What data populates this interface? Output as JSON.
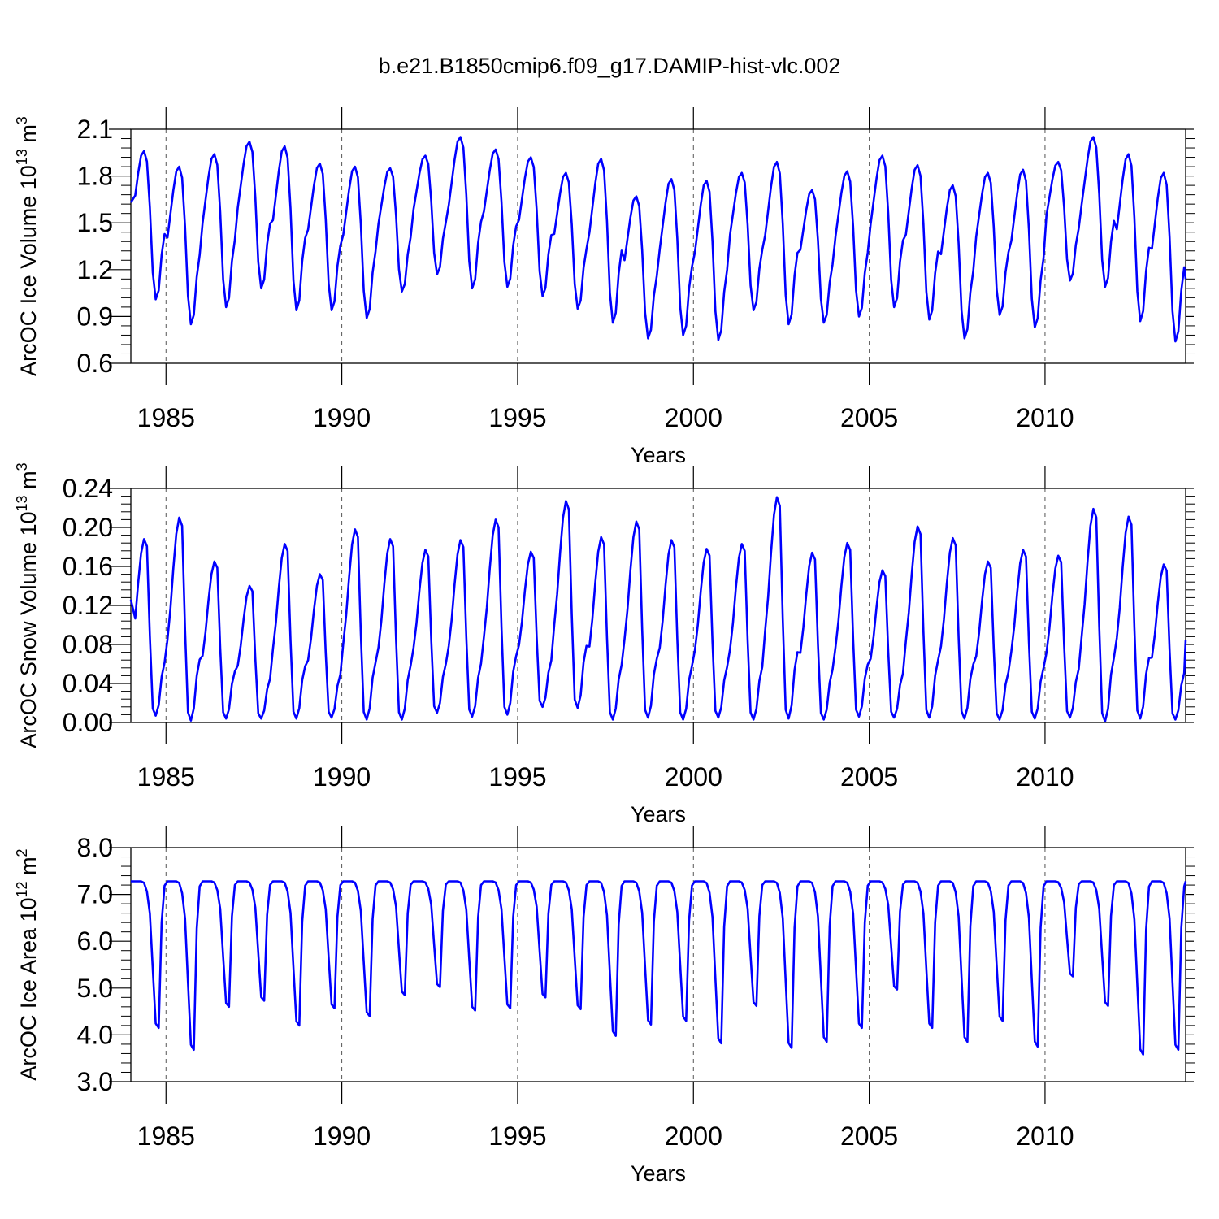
{
  "title": "b.e21.B1850cmip6.f09_g17.DAMIP-hist-vlc.002",
  "line_color": "#0000ff",
  "chart_data": [
    {
      "type": "line",
      "name": "ice-volume",
      "ylabel": "ArcOC Ice Volume 10^13 m^3",
      "ylabel_main": "ArcOC Ice Volume 10",
      "ylabel_exp": "13",
      "ylabel_unit": "m",
      "ylabel_unit_exp": "3",
      "xlabel": "Years",
      "xlim": [
        1984.0,
        2014.0
      ],
      "ylim": [
        0.6,
        2.1
      ],
      "x_ticks": [
        "1985",
        "1990",
        "1995",
        "2000",
        "2005",
        "2010"
      ],
      "y_ticks": [
        "0.6",
        "0.9",
        "1.2",
        "1.5",
        "1.8",
        "2.1"
      ],
      "series": [
        {
          "name": "ArcOC Ice Volume",
          "annual_max": [
            1.96,
            1.86,
            1.94,
            2.02,
            1.99,
            1.88,
            1.86,
            1.85,
            1.93,
            2.05,
            1.97,
            1.92,
            1.82,
            1.91,
            1.67,
            1.78,
            1.77,
            1.82,
            1.89,
            1.71,
            1.83,
            1.93,
            1.87,
            1.74,
            1.82,
            1.84,
            1.89,
            2.05,
            1.94,
            1.82
          ],
          "annual_min": [
            1.01,
            0.85,
            0.96,
            1.08,
            0.94,
            0.94,
            0.89,
            1.06,
            1.17,
            1.08,
            1.09,
            1.03,
            0.95,
            0.86,
            0.76,
            0.78,
            0.75,
            0.94,
            0.85,
            0.86,
            0.9,
            0.96,
            0.88,
            0.76,
            0.91,
            0.83,
            1.13,
            1.09,
            0.87,
            0.74
          ],
          "start_value": 1.63,
          "end_value": 1.14
        }
      ]
    },
    {
      "type": "line",
      "name": "snow-volume",
      "ylabel": "ArcOC Snow Volume 10^13 m^3",
      "ylabel_main": "ArcOC Snow Volume 10",
      "ylabel_exp": "13",
      "ylabel_unit": "m",
      "ylabel_unit_exp": "3",
      "xlabel": "Years",
      "xlim": [
        1984.0,
        2014.0
      ],
      "ylim": [
        0.0,
        0.24
      ],
      "x_ticks": [
        "1985",
        "1990",
        "1995",
        "2000",
        "2005",
        "2010"
      ],
      "y_ticks": [
        "0.00",
        "0.04",
        "0.08",
        "0.12",
        "0.16",
        "0.20",
        "0.24"
      ],
      "series": [
        {
          "name": "ArcOC Snow Volume",
          "annual_max": [
            0.188,
            0.21,
            0.165,
            0.14,
            0.183,
            0.152,
            0.198,
            0.188,
            0.177,
            0.187,
            0.208,
            0.175,
            0.227,
            0.19,
            0.206,
            0.187,
            0.178,
            0.183,
            0.231,
            0.174,
            0.184,
            0.156,
            0.201,
            0.189,
            0.165,
            0.177,
            0.171,
            0.219,
            0.211,
            0.162
          ],
          "annual_min": [
            0.007,
            0.002,
            0.004,
            0.004,
            0.004,
            0.005,
            0.003,
            0.003,
            0.01,
            0.006,
            0.008,
            0.016,
            0.015,
            0.003,
            0.005,
            0.003,
            0.005,
            0.003,
            0.004,
            0.003,
            0.006,
            0.005,
            0.005,
            0.004,
            0.003,
            0.004,
            0.005,
            0.001,
            0.004,
            0.003
          ],
          "start_value": 0.126,
          "end_value": 0.085
        }
      ]
    },
    {
      "type": "line",
      "name": "ice-area",
      "ylabel": "ArcOC Ice Area 10^12 m^2",
      "ylabel_main": "ArcOC Ice Area 10",
      "ylabel_exp": "12",
      "ylabel_unit": "m",
      "ylabel_unit_exp": "2",
      "xlabel": "Years",
      "xlim": [
        1984.0,
        2014.0
      ],
      "ylim": [
        3.0,
        8.0
      ],
      "x_ticks": [
        "1985",
        "1990",
        "1995",
        "2000",
        "2005",
        "2010"
      ],
      "y_ticks": [
        "3.0",
        "4.0",
        "5.0",
        "6.0",
        "7.0",
        "8.0"
      ],
      "series": [
        {
          "name": "ArcOC Ice Area",
          "annual_max": [
            7.28,
            7.28,
            7.28,
            7.28,
            7.28,
            7.28,
            7.28,
            7.28,
            7.28,
            7.28,
            7.28,
            7.28,
            7.28,
            7.28,
            7.28,
            7.28,
            7.28,
            7.28,
            7.28,
            7.28,
            7.28,
            7.28,
            7.28,
            7.28,
            7.28,
            7.28,
            7.28,
            7.28,
            7.28,
            7.28
          ],
          "annual_min": [
            4.15,
            3.68,
            4.6,
            4.73,
            4.2,
            4.57,
            4.4,
            4.85,
            5.02,
            4.52,
            4.57,
            4.8,
            4.55,
            3.98,
            4.22,
            4.3,
            3.82,
            4.62,
            3.72,
            3.85,
            4.15,
            4.97,
            4.15,
            3.85,
            4.3,
            3.75,
            5.25,
            4.62,
            3.58,
            3.68
          ],
          "start_value": 7.28,
          "end_value": 7.28
        }
      ]
    }
  ]
}
